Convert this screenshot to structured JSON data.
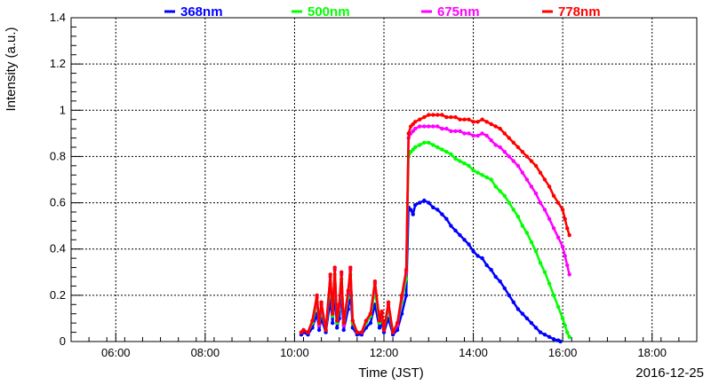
{
  "chart_data": {
    "type": "scatter",
    "title": "",
    "xlabel": "Time (JST)",
    "ylabel": "Intensity (a.u.)",
    "date_label": "2016-12-25",
    "x_unit": "hours (JST)",
    "xlim": [
      5.0,
      19.0
    ],
    "ylim": [
      0.0,
      1.4
    ],
    "xticks": [
      6,
      8,
      10,
      12,
      14,
      16,
      18
    ],
    "xtick_labels": [
      "06:00",
      "08:00",
      "10:00",
      "12:00",
      "14:00",
      "16:00",
      "18:00"
    ],
    "yticks": [
      0,
      0.2,
      0.4,
      0.6,
      0.8,
      1,
      1.2,
      1.4
    ],
    "ytick_labels": [
      "0",
      "0.2",
      "0.4",
      "0.6",
      "0.8",
      "1",
      "1.2",
      "1.4"
    ],
    "grid": true,
    "legend_position": "top",
    "series": [
      {
        "name": "368nm",
        "color": "#0000ff",
        "x": [
          10.15,
          10.2,
          10.3,
          10.4,
          10.5,
          10.55,
          10.6,
          10.7,
          10.8,
          10.85,
          10.9,
          10.95,
          11.0,
          11.05,
          11.1,
          11.2,
          11.25,
          11.3,
          11.4,
          11.5,
          11.6,
          11.7,
          11.8,
          11.9,
          11.95,
          12.0,
          12.1,
          12.2,
          12.3,
          12.4,
          12.5,
          12.55,
          12.6,
          12.65,
          12.7,
          12.8,
          12.9,
          13.0,
          13.1,
          13.2,
          13.3,
          13.4,
          13.5,
          13.6,
          13.7,
          13.8,
          13.9,
          14.0,
          14.1,
          14.2,
          14.3,
          14.4,
          14.5,
          14.6,
          14.7,
          14.8,
          14.9,
          15.0,
          15.1,
          15.2,
          15.3,
          15.4,
          15.5,
          15.6,
          15.7,
          15.8,
          15.9,
          15.95
        ],
        "y": [
          0.03,
          0.04,
          0.03,
          0.06,
          0.12,
          0.05,
          0.1,
          0.04,
          0.18,
          0.08,
          0.21,
          0.06,
          0.1,
          0.2,
          0.05,
          0.14,
          0.22,
          0.06,
          0.03,
          0.03,
          0.06,
          0.08,
          0.16,
          0.06,
          0.08,
          0.04,
          0.1,
          0.03,
          0.05,
          0.12,
          0.2,
          0.58,
          0.57,
          0.55,
          0.59,
          0.6,
          0.61,
          0.6,
          0.58,
          0.57,
          0.55,
          0.53,
          0.5,
          0.48,
          0.46,
          0.44,
          0.42,
          0.39,
          0.37,
          0.36,
          0.33,
          0.31,
          0.28,
          0.26,
          0.23,
          0.2,
          0.17,
          0.14,
          0.12,
          0.1,
          0.08,
          0.06,
          0.04,
          0.03,
          0.02,
          0.01,
          0.005,
          0.0
        ]
      },
      {
        "name": "500nm",
        "color": "#00ff00",
        "x": [
          10.15,
          10.2,
          10.3,
          10.4,
          10.5,
          10.55,
          10.6,
          10.7,
          10.8,
          10.85,
          10.9,
          10.95,
          11.0,
          11.05,
          11.1,
          11.2,
          11.25,
          11.3,
          11.4,
          11.5,
          11.6,
          11.7,
          11.8,
          11.9,
          11.95,
          12.0,
          12.1,
          12.2,
          12.3,
          12.4,
          12.5,
          12.55,
          12.6,
          12.65,
          12.7,
          12.8,
          12.9,
          13.0,
          13.1,
          13.2,
          13.3,
          13.4,
          13.5,
          13.6,
          13.7,
          13.8,
          13.9,
          14.0,
          14.1,
          14.2,
          14.3,
          14.4,
          14.5,
          14.6,
          14.7,
          14.8,
          14.9,
          15.0,
          15.1,
          15.2,
          15.3,
          15.4,
          15.5,
          15.6,
          15.7,
          15.8,
          15.9,
          16.0,
          16.05,
          16.1,
          16.15
        ],
        "y": [
          0.04,
          0.05,
          0.04,
          0.08,
          0.17,
          0.07,
          0.14,
          0.05,
          0.25,
          0.11,
          0.29,
          0.08,
          0.14,
          0.27,
          0.07,
          0.19,
          0.29,
          0.08,
          0.04,
          0.04,
          0.08,
          0.11,
          0.22,
          0.08,
          0.11,
          0.05,
          0.14,
          0.04,
          0.07,
          0.17,
          0.27,
          0.8,
          0.82,
          0.83,
          0.84,
          0.85,
          0.86,
          0.86,
          0.85,
          0.84,
          0.83,
          0.82,
          0.81,
          0.79,
          0.78,
          0.77,
          0.76,
          0.74,
          0.73,
          0.72,
          0.71,
          0.7,
          0.67,
          0.65,
          0.63,
          0.6,
          0.57,
          0.54,
          0.5,
          0.47,
          0.43,
          0.39,
          0.34,
          0.3,
          0.25,
          0.2,
          0.15,
          0.1,
          0.07,
          0.04,
          0.02
        ]
      },
      {
        "name": "675nm",
        "color": "#ff00ff",
        "x": [
          10.15,
          10.2,
          10.3,
          10.4,
          10.5,
          10.55,
          10.6,
          10.7,
          10.8,
          10.85,
          10.9,
          10.95,
          11.0,
          11.05,
          11.1,
          11.2,
          11.25,
          11.3,
          11.4,
          11.5,
          11.6,
          11.7,
          11.8,
          11.9,
          11.95,
          12.0,
          12.1,
          12.2,
          12.3,
          12.4,
          12.5,
          12.55,
          12.6,
          12.65,
          12.7,
          12.8,
          12.9,
          13.0,
          13.1,
          13.2,
          13.3,
          13.4,
          13.5,
          13.6,
          13.7,
          13.8,
          13.9,
          14.0,
          14.1,
          14.2,
          14.3,
          14.4,
          14.5,
          14.6,
          14.7,
          14.8,
          14.9,
          15.0,
          15.1,
          15.2,
          15.3,
          15.4,
          15.5,
          15.6,
          15.7,
          15.8,
          15.9,
          16.0,
          16.05,
          16.1,
          16.15
        ],
        "y": [
          0.04,
          0.05,
          0.04,
          0.09,
          0.19,
          0.07,
          0.16,
          0.05,
          0.28,
          0.12,
          0.31,
          0.09,
          0.15,
          0.29,
          0.07,
          0.21,
          0.31,
          0.09,
          0.04,
          0.04,
          0.09,
          0.12,
          0.25,
          0.09,
          0.12,
          0.05,
          0.16,
          0.04,
          0.07,
          0.19,
          0.3,
          0.88,
          0.9,
          0.91,
          0.92,
          0.93,
          0.93,
          0.93,
          0.93,
          0.93,
          0.92,
          0.92,
          0.91,
          0.91,
          0.91,
          0.9,
          0.9,
          0.89,
          0.89,
          0.9,
          0.89,
          0.87,
          0.85,
          0.84,
          0.82,
          0.8,
          0.78,
          0.76,
          0.73,
          0.7,
          0.67,
          0.64,
          0.6,
          0.57,
          0.53,
          0.49,
          0.45,
          0.41,
          0.37,
          0.33,
          0.29
        ]
      },
      {
        "name": "778nm",
        "color": "#ff0000",
        "x": [
          10.15,
          10.2,
          10.3,
          10.4,
          10.5,
          10.55,
          10.6,
          10.7,
          10.8,
          10.85,
          10.9,
          10.95,
          11.0,
          11.05,
          11.1,
          11.2,
          11.25,
          11.3,
          11.4,
          11.5,
          11.6,
          11.7,
          11.8,
          11.9,
          11.95,
          12.0,
          12.1,
          12.2,
          12.3,
          12.4,
          12.5,
          12.55,
          12.6,
          12.65,
          12.7,
          12.8,
          12.9,
          13.0,
          13.1,
          13.2,
          13.3,
          13.4,
          13.5,
          13.6,
          13.7,
          13.8,
          13.9,
          14.0,
          14.1,
          14.2,
          14.3,
          14.4,
          14.5,
          14.6,
          14.7,
          14.8,
          14.9,
          15.0,
          15.1,
          15.2,
          15.3,
          15.4,
          15.5,
          15.6,
          15.7,
          15.8,
          15.9,
          16.0,
          16.05,
          16.1,
          16.15
        ],
        "y": [
          0.04,
          0.05,
          0.04,
          0.09,
          0.2,
          0.08,
          0.17,
          0.05,
          0.29,
          0.12,
          0.32,
          0.09,
          0.16,
          0.3,
          0.08,
          0.22,
          0.32,
          0.09,
          0.04,
          0.04,
          0.09,
          0.12,
          0.26,
          0.09,
          0.13,
          0.05,
          0.17,
          0.04,
          0.08,
          0.2,
          0.31,
          0.9,
          0.93,
          0.94,
          0.95,
          0.96,
          0.97,
          0.98,
          0.98,
          0.98,
          0.98,
          0.97,
          0.97,
          0.97,
          0.96,
          0.96,
          0.96,
          0.95,
          0.95,
          0.96,
          0.95,
          0.94,
          0.93,
          0.92,
          0.9,
          0.88,
          0.86,
          0.84,
          0.82,
          0.8,
          0.78,
          0.76,
          0.73,
          0.7,
          0.67,
          0.63,
          0.6,
          0.57,
          0.53,
          0.49,
          0.46
        ]
      }
    ]
  }
}
